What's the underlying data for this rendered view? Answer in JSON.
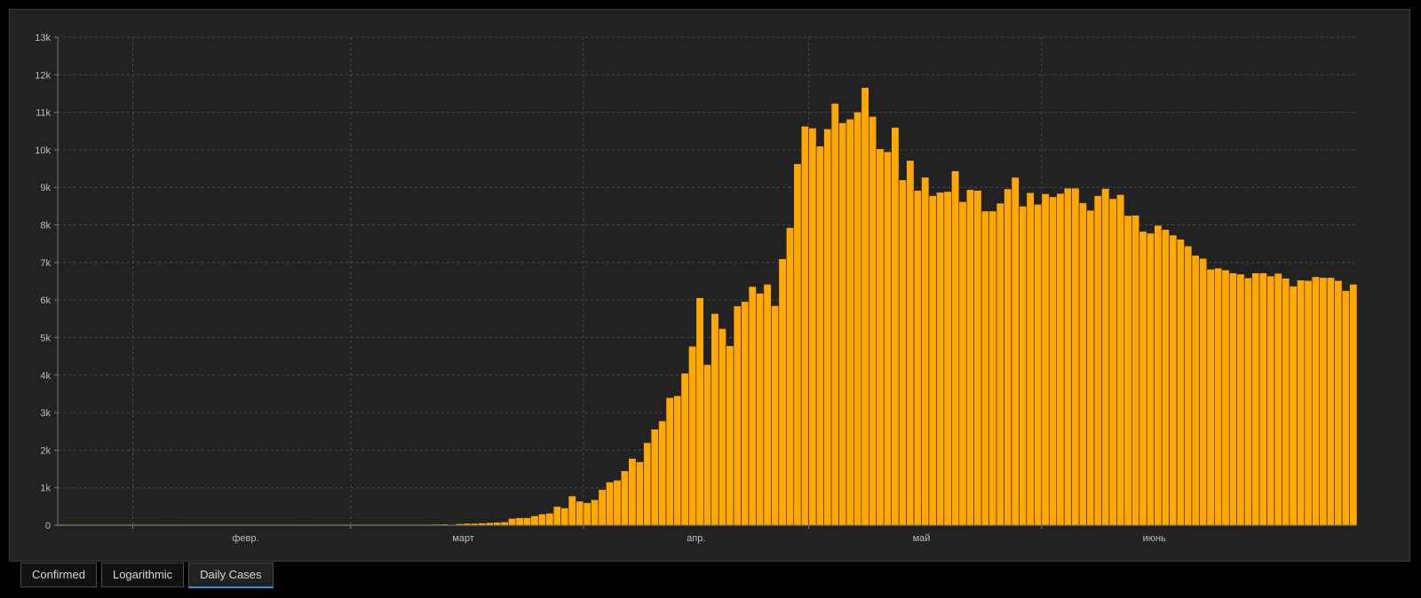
{
  "chart_data": {
    "type": "bar",
    "bar_color": "#ffa800",
    "title": "",
    "xlabel": "",
    "ylabel": "",
    "ylim": [
      0,
      13000
    ],
    "yticks": [
      0,
      1000,
      2000,
      3000,
      4000,
      5000,
      6000,
      7000,
      8000,
      9000,
      10000,
      11000,
      12000,
      13000
    ],
    "ytick_labels": [
      "0",
      "1k",
      "2k",
      "3k",
      "4k",
      "5k",
      "6k",
      "7k",
      "8k",
      "9k",
      "10k",
      "11k",
      "12k",
      "13k"
    ],
    "grid": true,
    "x_start": "2020-01-22",
    "x_month_ticks": [
      {
        "label": "февр.",
        "date": "2020-02-01"
      },
      {
        "label": "март",
        "date": "2020-03-01"
      },
      {
        "label": "апр.",
        "date": "2020-04-01"
      },
      {
        "label": "май",
        "date": "2020-05-01"
      },
      {
        "label": "июнь",
        "date": "2020-06-01"
      }
    ],
    "values": [
      0,
      0,
      0,
      0,
      0,
      0,
      0,
      0,
      0,
      0,
      0,
      0,
      0,
      0,
      0,
      0,
      0,
      0,
      0,
      0,
      0,
      0,
      0,
      0,
      0,
      0,
      0,
      0,
      0,
      0,
      0,
      0,
      0,
      0,
      0,
      0,
      0,
      0,
      0,
      0,
      0,
      0,
      0,
      0,
      0,
      0,
      0,
      0,
      0,
      0,
      25,
      30,
      20,
      40,
      50,
      50,
      60,
      70,
      80,
      90,
      180,
      200,
      200,
      250,
      300,
      320,
      500,
      460,
      780,
      640,
      600,
      680,
      950,
      1150,
      1200,
      1450,
      1780,
      1690,
      2200,
      2560,
      2780,
      3400,
      3450,
      4050,
      4770,
      6060,
      4280,
      5640,
      5240,
      4780,
      5840,
      5960,
      6360,
      6180,
      6420,
      5850,
      7100,
      7930,
      9630,
      10630,
      10580,
      10100,
      10560,
      11240,
      10720,
      10820,
      11010,
      11660,
      10890,
      10030,
      9950,
      10600,
      9200,
      9720,
      8920,
      9270,
      8780,
      8870,
      8890,
      9440,
      8620,
      8940,
      8920,
      8370,
      8370,
      8580,
      8960,
      9270,
      8500,
      8860,
      8550,
      8830,
      8750,
      8840,
      8980,
      8980,
      8590,
      8390,
      8780,
      8970,
      8700,
      8810,
      8250,
      8260,
      7830,
      7780,
      7990,
      7880,
      7730,
      7620,
      7440,
      7190,
      7110,
      6820,
      6850,
      6800,
      6720,
      6690,
      6590,
      6720,
      6720,
      6640,
      6710,
      6580,
      6370,
      6530,
      6520,
      6620,
      6600,
      6600,
      6520,
      6250,
      6420
    ]
  },
  "tabs": [
    {
      "label": "Confirmed",
      "active": false
    },
    {
      "label": "Logarithmic",
      "active": false
    },
    {
      "label": "Daily Cases",
      "active": true
    }
  ],
  "colors": {
    "background": "#000000",
    "panel": "#222222",
    "bar": "#ffa800",
    "active_tab_accent": "#2f8fe0"
  }
}
